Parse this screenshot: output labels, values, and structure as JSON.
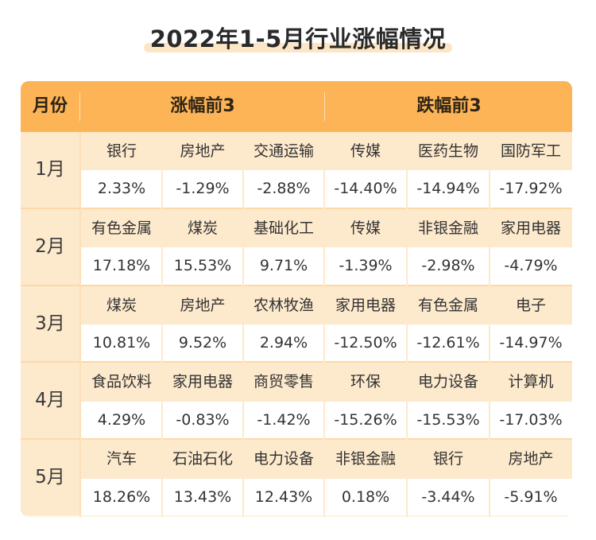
{
  "title": "2022年1-5月行业涨幅情况",
  "header": {
    "month_label": "月份",
    "rise_label": "涨幅前3",
    "fall_label": "跌幅前3"
  },
  "rows": [
    {
      "month": "1月",
      "names": [
        "银行",
        "房地产",
        "交通运输",
        "传媒",
        "医药生物",
        "国防军工"
      ],
      "values": [
        "2.33%",
        "-1.29%",
        "-2.88%",
        "-14.40%",
        "-14.94%",
        "-17.92%"
      ]
    },
    {
      "month": "2月",
      "names": [
        "有色金属",
        "煤炭",
        "基础化工",
        "传媒",
        "非银金融",
        "家用电器"
      ],
      "values": [
        "17.18%",
        "15.53%",
        "9.71%",
        "-1.39%",
        "-2.98%",
        "-4.79%"
      ]
    },
    {
      "month": "3月",
      "names": [
        "煤炭",
        "房地产",
        "农林牧渔",
        "家用电器",
        "有色金属",
        "电子"
      ],
      "values": [
        "10.81%",
        "9.52%",
        "2.94%",
        "-12.50%",
        "-12.61%",
        "-14.97%"
      ]
    },
    {
      "month": "4月",
      "names": [
        "食品饮料",
        "家用电器",
        "商贸零售",
        "环保",
        "电力设备",
        "计算机"
      ],
      "values": [
        "4.29%",
        "-0.83%",
        "-1.42%",
        "-15.26%",
        "-15.53%",
        "-17.03%"
      ]
    },
    {
      "month": "5月",
      "names": [
        "汽车",
        "石油石化",
        "电力设备",
        "非银金融",
        "银行",
        "房地产"
      ],
      "values": [
        "18.26%",
        "13.43%",
        "12.43%",
        "0.18%",
        "-3.44%",
        "-5.91%"
      ]
    }
  ]
}
